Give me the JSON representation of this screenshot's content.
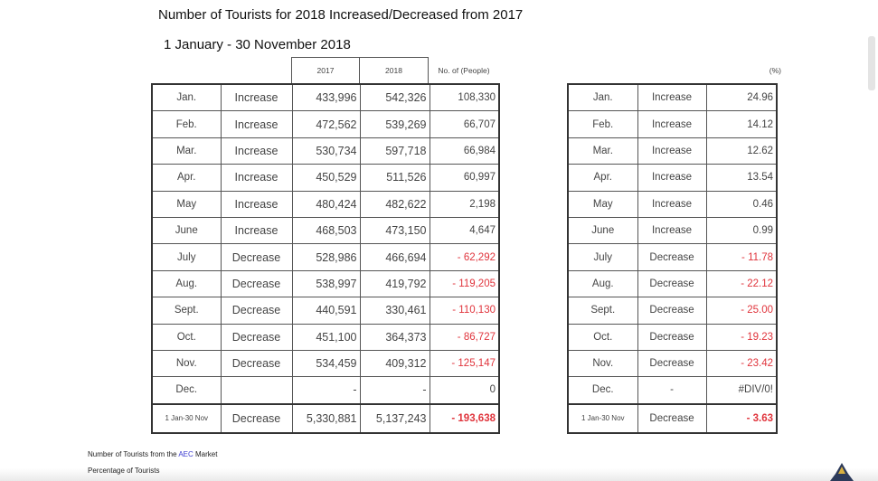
{
  "title": "Number of Tourists for 2018 Increased/Decreased from 2017",
  "subtitle": "1 January - 30 November 2018",
  "left_table": {
    "headers": [
      "2017",
      "2018",
      "No. of (People)"
    ],
    "rows": [
      {
        "month": "Jan.",
        "status": "Increase",
        "y2017": "433,996",
        "y2018": "542,326",
        "diff": "108,330",
        "neg": false
      },
      {
        "month": "Feb.",
        "status": "Increase",
        "y2017": "472,562",
        "y2018": "539,269",
        "diff": "66,707",
        "neg": false
      },
      {
        "month": "Mar.",
        "status": "Increase",
        "y2017": "530,734",
        "y2018": "597,718",
        "diff": "66,984",
        "neg": false
      },
      {
        "month": "Apr.",
        "status": "Increase",
        "y2017": "450,529",
        "y2018": "511,526",
        "diff": "60,997",
        "neg": false
      },
      {
        "month": "May",
        "status": "Increase",
        "y2017": "480,424",
        "y2018": "482,622",
        "diff": "2,198",
        "neg": false
      },
      {
        "month": "June",
        "status": "Increase",
        "y2017": "468,503",
        "y2018": "473,150",
        "diff": "4,647",
        "neg": false
      },
      {
        "month": "July",
        "status": "Decrease",
        "y2017": "528,986",
        "y2018": "466,694",
        "diff": "- 62,292",
        "neg": true
      },
      {
        "month": "Aug.",
        "status": "Decrease",
        "y2017": "538,997",
        "y2018": "419,792",
        "diff": "- 119,205",
        "neg": true
      },
      {
        "month": "Sept.",
        "status": "Decrease",
        "y2017": "440,591",
        "y2018": "330,461",
        "diff": "- 110,130",
        "neg": true
      },
      {
        "month": "Oct.",
        "status": "Decrease",
        "y2017": "451,100",
        "y2018": "364,373",
        "diff": "- 86,727",
        "neg": true
      },
      {
        "month": "Nov.",
        "status": "Decrease",
        "y2017": "534,459",
        "y2018": "409,312",
        "diff": "- 125,147",
        "neg": true
      },
      {
        "month": "Dec.",
        "status": "",
        "y2017": "-",
        "y2018": "-",
        "diff": "0",
        "neg": false
      }
    ],
    "total": {
      "month": "1 Jan-30 Nov",
      "status": "Decrease",
      "y2017": "5,330,881",
      "y2018": "5,137,243",
      "diff": "- 193,638"
    }
  },
  "right_table": {
    "header": "(%)",
    "rows": [
      {
        "month": "Jan.",
        "status": "Increase",
        "pct": "24.96",
        "neg": false
      },
      {
        "month": "Feb.",
        "status": "Increase",
        "pct": "14.12",
        "neg": false
      },
      {
        "month": "Mar.",
        "status": "Increase",
        "pct": "12.62",
        "neg": false
      },
      {
        "month": "Apr.",
        "status": "Increase",
        "pct": "13.54",
        "neg": false
      },
      {
        "month": "May",
        "status": "Increase",
        "pct": "0.46",
        "neg": false
      },
      {
        "month": "June",
        "status": "Increase",
        "pct": "0.99",
        "neg": false
      },
      {
        "month": "July",
        "status": "Decrease",
        "pct": "- 11.78",
        "neg": true
      },
      {
        "month": "Aug.",
        "status": "Decrease",
        "pct": "- 22.12",
        "neg": true
      },
      {
        "month": "Sept.",
        "status": "Decrease",
        "pct": "- 25.00",
        "neg": true
      },
      {
        "month": "Oct.",
        "status": "Decrease",
        "pct": "- 19.23",
        "neg": true
      },
      {
        "month": "Nov.",
        "status": "Decrease",
        "pct": "- 23.42",
        "neg": true
      },
      {
        "month": "Dec.",
        "status": "-",
        "pct": "#DIV/0!",
        "neg": false
      }
    ],
    "total": {
      "month": "1 Jan-30 Nov",
      "status": "Decrease",
      "pct": "- 3.63"
    }
  },
  "footer": {
    "line1_prefix": "Number of Tourists from the ",
    "line1_highlight": "AEC",
    "line1_suffix": " Market",
    "line2": "Percentage of Tourists"
  },
  "colors": {
    "negative": "#e0343c",
    "highlight": "#3a3ad0"
  }
}
